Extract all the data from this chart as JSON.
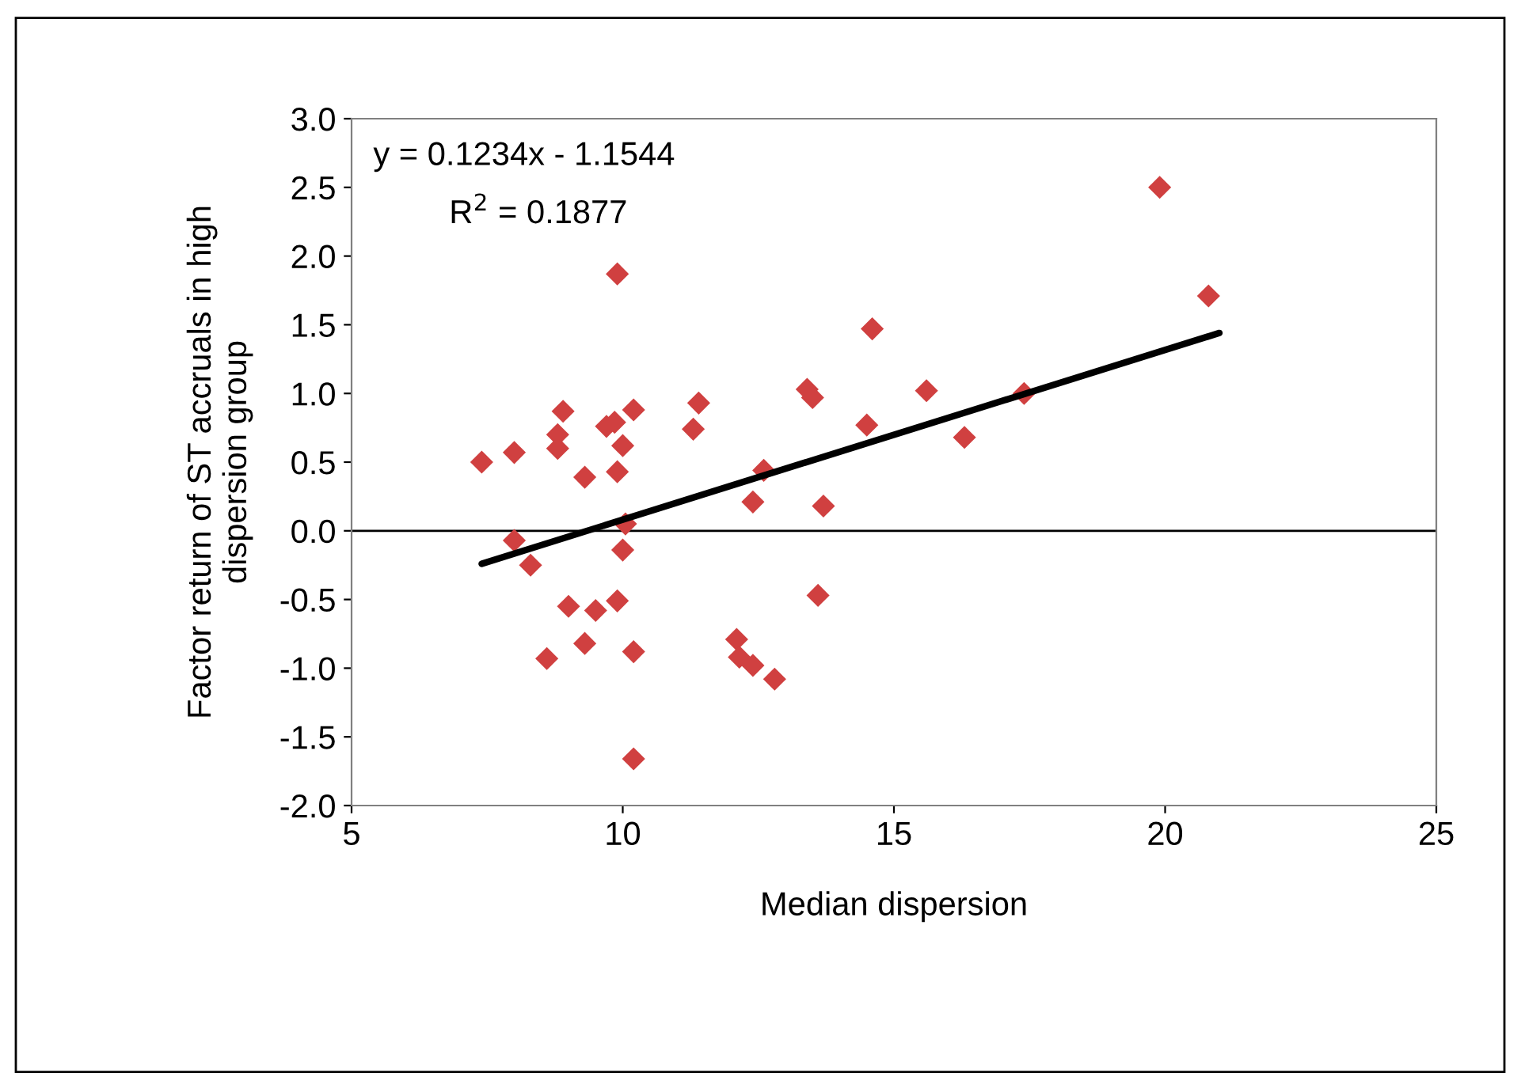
{
  "chart_data": {
    "type": "scatter",
    "xlabel": "Median dispersion",
    "ylabel": "Factor return of ST accruals in high\ndispersion group",
    "xlim": [
      5,
      25
    ],
    "xticks": [
      5,
      10,
      15,
      20,
      25
    ],
    "ylim": [
      -2.0,
      3.0
    ],
    "yticks": [
      {
        "value": -2.0,
        "label": "-2.0"
      },
      {
        "value": -1.5,
        "label": "-1.5"
      },
      {
        "value": -1.0,
        "label": "-1.0"
      },
      {
        "value": -0.5,
        "label": "-0.5"
      },
      {
        "value": 0.0,
        "label": "0.0"
      },
      {
        "value": 0.5,
        "label": "0.5"
      },
      {
        "value": 1.0,
        "label": "1.0"
      },
      {
        "value": 1.5,
        "label": "1.5"
      },
      {
        "value": 2.0,
        "label": "2.0"
      },
      {
        "value": 2.5,
        "label": "2.5"
      },
      {
        "value": 3.0,
        "label": "3.0"
      }
    ],
    "grid": false,
    "legend": false,
    "ref_lines": [
      {
        "axis": "y",
        "value": 0,
        "color": "#000000"
      }
    ],
    "annotations": [
      "y = 0.1234x - 1.1544",
      "R$^{2}$ = 0.1877"
    ],
    "series": [
      {
        "color": "#d04040",
        "marker": "diamond",
        "x": [
          7.4,
          8.0,
          8.0,
          8.3,
          8.8,
          8.8,
          8.9,
          9.0,
          8.6,
          9.3,
          9.3,
          9.5,
          9.7,
          9.85,
          9.9,
          9.9,
          10.0,
          9.9,
          10.0,
          10.05,
          10.2,
          10.2,
          10.2,
          11.3,
          11.4,
          12.4,
          12.6,
          12.1,
          12.15,
          12.4,
          12.8,
          13.4,
          13.5,
          13.6,
          13.7,
          14.5,
          14.6,
          15.6,
          16.3,
          17.4,
          19.9,
          20.8
        ],
        "values": [
          0.5,
          0.57,
          -0.07,
          -0.25,
          0.7,
          0.6,
          0.87,
          -0.55,
          -0.93,
          0.39,
          -0.82,
          -0.58,
          0.76,
          0.79,
          1.87,
          0.43,
          0.62,
          -0.51,
          -0.14,
          0.05,
          0.88,
          -0.88,
          -1.66,
          0.74,
          0.93,
          0.21,
          0.44,
          -0.79,
          -0.92,
          -0.98,
          -1.08,
          1.03,
          0.97,
          -0.47,
          0.18,
          0.77,
          1.47,
          1.02,
          0.68,
          1.0,
          2.5,
          1.71
        ]
      },
      {
        "type": "line",
        "color": "#000000",
        "line_style": "solid",
        "marker": "none",
        "x": [
          7.4,
          21.0
        ],
        "values": [
          -0.24,
          1.44
        ]
      }
    ]
  }
}
